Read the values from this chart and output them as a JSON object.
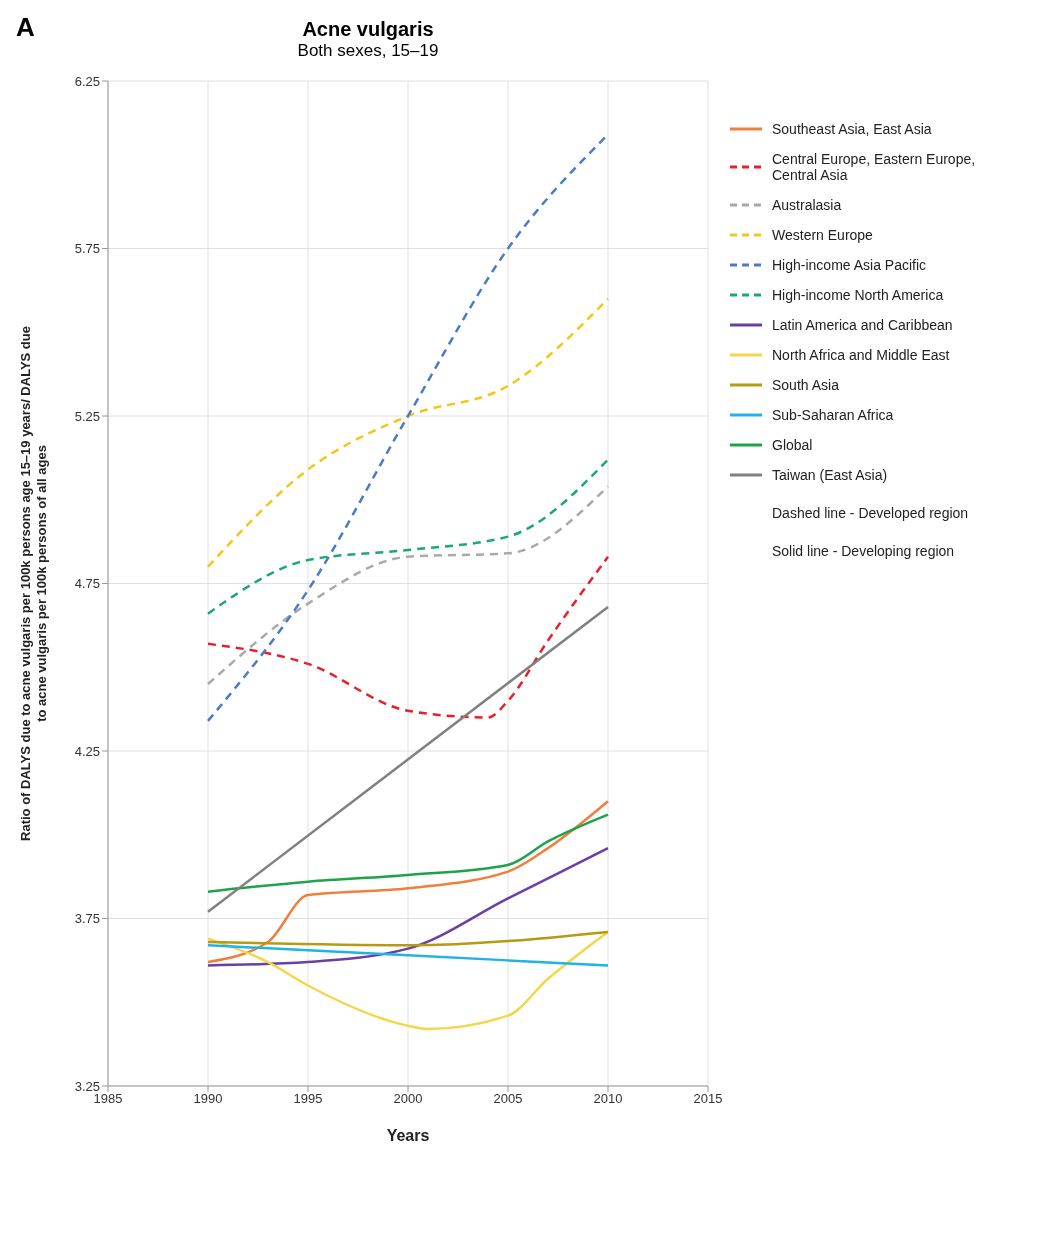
{
  "chart_data": {
    "type": "line",
    "title": "Acne vulgaris",
    "subtitle": "Both sexes, 15–19",
    "xlabel": "Years",
    "ylabel": "Ratio of DALYS due to acne vulgaris per 100k persons age 15–19 years/ DALYS due to acne vulgaris per 100k persons of all ages",
    "annotations": [
      "A",
      "Dashed line - Developed region",
      "Solid line - Developing region"
    ],
    "xlim": [
      1985,
      2015
    ],
    "xticks": [
      1985,
      1990,
      1995,
      2000,
      2005,
      2010,
      2015
    ],
    "ylim": [
      3.25,
      6.25
    ],
    "yticks": [
      3.25,
      3.75,
      4.25,
      4.75,
      5.25,
      5.75,
      6.25
    ],
    "grid": true,
    "legend": "right",
    "marker": "none",
    "series": [
      {
        "name": "Southeast Asia, East Asia",
        "color": "#f07f3c",
        "line_style": "solid",
        "x": [
          1990,
          1993,
          1995,
          2000,
          2005,
          2007,
          2010
        ],
        "values": [
          3.62,
          3.68,
          3.82,
          3.84,
          3.89,
          3.96,
          4.1
        ]
      },
      {
        "name": "Central Europe, Eastern Europe, Central Asia",
        "color": "#e8202a",
        "line_style": "dashed",
        "x": [
          1990,
          1995,
          2000,
          2004,
          2005,
          2007,
          2010
        ],
        "values": [
          4.57,
          4.51,
          4.37,
          4.35,
          4.4,
          4.58,
          4.83
        ]
      },
      {
        "name": "Australasia",
        "color": "#a9a9a9",
        "line_style": "dashed",
        "x": [
          1990,
          1995,
          2000,
          2005,
          2010
        ],
        "values": [
          4.45,
          4.69,
          4.83,
          4.84,
          5.04
        ]
      },
      {
        "name": "Western Europe",
        "color": "#f5c518",
        "line_style": "dashed",
        "x": [
          1990,
          1995,
          2000,
          2005,
          2010
        ],
        "values": [
          4.8,
          5.09,
          5.25,
          5.34,
          5.6
        ]
      },
      {
        "name": "High-income Asia Pacific",
        "color": "#4a7ac8",
        "line_style": "dashed",
        "x": [
          1990,
          1995,
          2000,
          2005,
          2010
        ],
        "values": [
          4.34,
          4.73,
          5.25,
          5.75,
          6.09
        ]
      },
      {
        "name": "High-income North America",
        "color": "#1aa77b",
        "line_style": "dashed",
        "x": [
          1990,
          1995,
          2000,
          2005,
          2010
        ],
        "values": [
          4.66,
          4.82,
          4.85,
          4.89,
          5.12
        ]
      },
      {
        "name": "Latin America and Caribbean",
        "color": "#6a3fa0",
        "line_style": "solid",
        "x": [
          1990,
          1995,
          2000,
          2005,
          2010
        ],
        "values": [
          3.61,
          3.62,
          3.66,
          3.81,
          3.96
        ]
      },
      {
        "name": "North Africa and Middle East",
        "color": "#f5d54a",
        "line_style": "solid",
        "x": [
          1990,
          1993,
          1995,
          2000,
          2001,
          2005,
          2007,
          2010
        ],
        "values": [
          3.69,
          3.62,
          3.55,
          3.43,
          3.42,
          3.46,
          3.57,
          3.71
        ]
      },
      {
        "name": "South Asia",
        "color": "#b59a12",
        "line_style": "solid",
        "x": [
          1990,
          2000,
          2010
        ],
        "values": [
          3.68,
          3.67,
          3.71
        ]
      },
      {
        "name": "Sub-Saharan Africa",
        "color": "#1fb3e8",
        "line_style": "solid",
        "x": [
          1990,
          2000,
          2010
        ],
        "values": [
          3.67,
          3.64,
          3.61
        ]
      },
      {
        "name": "Global",
        "color": "#1fa34a",
        "line_style": "solid",
        "x": [
          1990,
          1995,
          2000,
          2005,
          2007,
          2010
        ],
        "values": [
          3.83,
          3.86,
          3.88,
          3.91,
          3.98,
          4.06
        ]
      },
      {
        "name": "Taiwan (East Asia)",
        "color": "#808080",
        "line_style": "solid",
        "x": [
          1990,
          2010
        ],
        "values": [
          3.77,
          4.68
        ]
      }
    ]
  }
}
